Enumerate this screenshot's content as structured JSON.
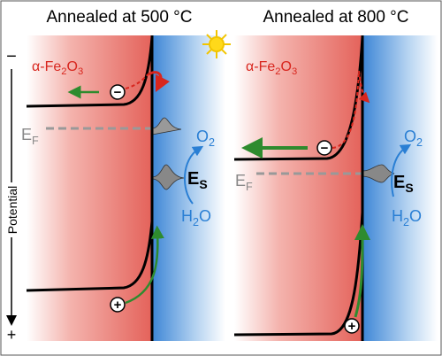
{
  "axis": {
    "label": "Potential",
    "top": "−",
    "bottom": "+"
  },
  "panels": [
    {
      "title": "Annealed at 500 °C",
      "material": [
        "α-Fe",
        "2",
        "O",
        "3"
      ],
      "fermi_level": [
        "E",
        "F"
      ],
      "surface_state": [
        "E",
        "S"
      ],
      "product": [
        "O",
        "2"
      ],
      "reactant": [
        "H",
        "2",
        "O"
      ],
      "electron": "−",
      "hole": "+"
    },
    {
      "title": "Annealed at 800 °C",
      "material": [
        "α-Fe",
        "2",
        "O",
        "3"
      ],
      "fermi_level": [
        "E",
        "F"
      ],
      "surface_state": [
        "E",
        "S"
      ],
      "product": [
        "O",
        "2"
      ],
      "reactant": [
        "H",
        "2",
        "O"
      ],
      "electron": "−",
      "hole": "+"
    }
  ]
}
